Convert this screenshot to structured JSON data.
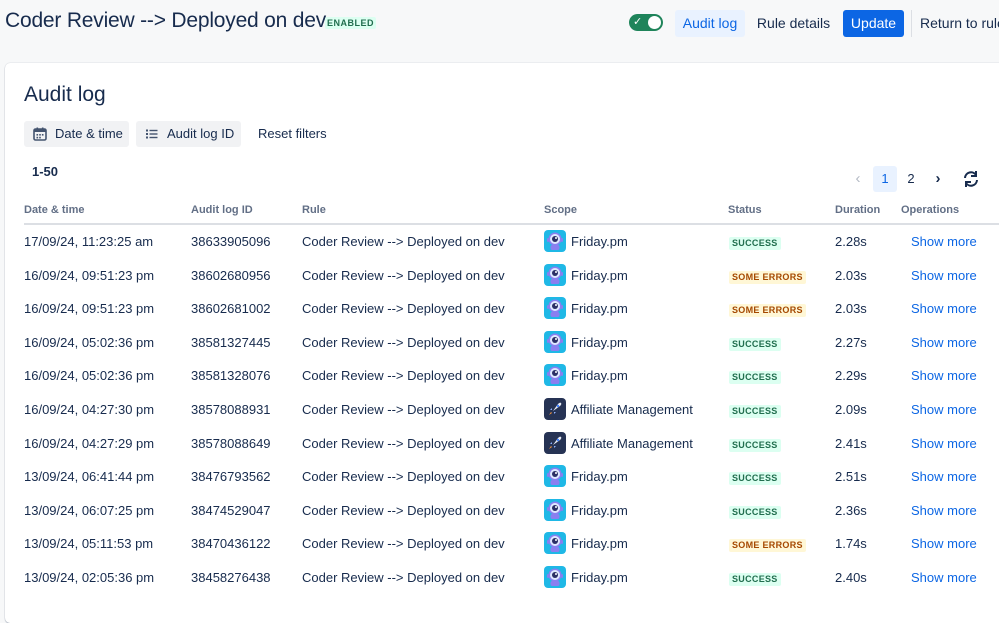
{
  "header": {
    "title": "Coder Review --> Deployed on dev",
    "status_badge": "ENABLED",
    "buttons": {
      "audit_log": "Audit log",
      "rule_details": "Rule details",
      "update": "Update",
      "return": "Return to rules"
    }
  },
  "audit": {
    "title": "Audit log",
    "filters": {
      "date_time": "Date & time",
      "audit_log_id": "Audit log ID",
      "reset": "Reset filters"
    },
    "range": "1-50",
    "pagination": {
      "pages": [
        "1",
        "2"
      ],
      "current": "1"
    },
    "columns": [
      "Date & time",
      "Audit log ID",
      "Rule",
      "Scope",
      "Status",
      "Duration",
      "Operations"
    ],
    "rows": [
      {
        "date": "17/09/24, 11:23:25 am",
        "id": "38633905096",
        "rule": "Coder Review --> Deployed on dev",
        "scope": "Friday.pm",
        "scope_icon": "robot-icon",
        "status": "SUCCESS",
        "duration": "2.28s",
        "op": "Show more"
      },
      {
        "date": "16/09/24, 09:51:23 pm",
        "id": "38602680956",
        "rule": "Coder Review --> Deployed on dev",
        "scope": "Friday.pm",
        "scope_icon": "robot-icon",
        "status": "SOME ERRORS",
        "duration": "2.03s",
        "op": "Show more"
      },
      {
        "date": "16/09/24, 09:51:23 pm",
        "id": "38602681002",
        "rule": "Coder Review --> Deployed on dev",
        "scope": "Friday.pm",
        "scope_icon": "robot-icon",
        "status": "SOME ERRORS",
        "duration": "2.03s",
        "op": "Show more"
      },
      {
        "date": "16/09/24, 05:02:36 pm",
        "id": "38581327445",
        "rule": "Coder Review --> Deployed on dev",
        "scope": "Friday.pm",
        "scope_icon": "robot-icon",
        "status": "SUCCESS",
        "duration": "2.27s",
        "op": "Show more"
      },
      {
        "date": "16/09/24, 05:02:36 pm",
        "id": "38581328076",
        "rule": "Coder Review --> Deployed on dev",
        "scope": "Friday.pm",
        "scope_icon": "robot-icon",
        "status": "SUCCESS",
        "duration": "2.29s",
        "op": "Show more"
      },
      {
        "date": "16/09/24, 04:27:30 pm",
        "id": "38578088931",
        "rule": "Coder Review --> Deployed on dev",
        "scope": "Affiliate Management",
        "scope_icon": "rocket-icon",
        "status": "SUCCESS",
        "duration": "2.09s",
        "op": "Show more"
      },
      {
        "date": "16/09/24, 04:27:29 pm",
        "id": "38578088649",
        "rule": "Coder Review --> Deployed on dev",
        "scope": "Affiliate Management",
        "scope_icon": "rocket-icon",
        "status": "SUCCESS",
        "duration": "2.41s",
        "op": "Show more"
      },
      {
        "date": "13/09/24, 06:41:44 pm",
        "id": "38476793562",
        "rule": "Coder Review --> Deployed on dev",
        "scope": "Friday.pm",
        "scope_icon": "robot-icon",
        "status": "SUCCESS",
        "duration": "2.51s",
        "op": "Show more"
      },
      {
        "date": "13/09/24, 06:07:25 pm",
        "id": "38474529047",
        "rule": "Coder Review --> Deployed on dev",
        "scope": "Friday.pm",
        "scope_icon": "robot-icon",
        "status": "SUCCESS",
        "duration": "2.36s",
        "op": "Show more"
      },
      {
        "date": "13/09/24, 05:11:53 pm",
        "id": "38470436122",
        "rule": "Coder Review --> Deployed on dev",
        "scope": "Friday.pm",
        "scope_icon": "robot-icon",
        "status": "SOME ERRORS",
        "duration": "1.74s",
        "op": "Show more"
      },
      {
        "date": "13/09/24, 02:05:36 pm",
        "id": "38458276438",
        "rule": "Coder Review --> Deployed on dev",
        "scope": "Friday.pm",
        "scope_icon": "robot-icon",
        "status": "SUCCESS",
        "duration": "2.40s",
        "op": "Show more"
      }
    ]
  },
  "colors": {
    "accent": "#0c66e4",
    "success_bg": "#dcfff1",
    "success_text": "#216e4e",
    "error_bg": "#fff7d6",
    "error_text": "#a54800",
    "toggle_on": "#1f845a"
  }
}
